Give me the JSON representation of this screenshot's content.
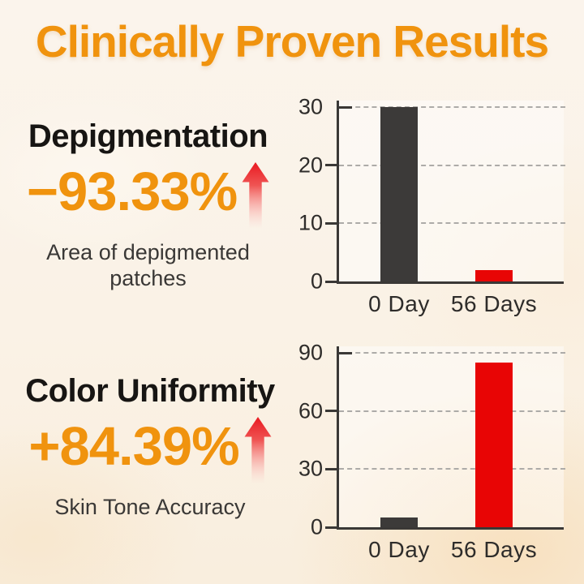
{
  "title": "Clinically Proven Results",
  "colors": {
    "accent_orange": "#F0930E",
    "bar_dark": "#3C3A39",
    "bar_red": "#E80505",
    "arrow_red": "#EA1A21",
    "heading_text": "#171513",
    "caption_text": "#3A3836",
    "axis_text": "#2E2C2A",
    "background_cream": "#FAF2E6"
  },
  "sections": [
    {
      "heading": "Depigmentation",
      "metric": "−93.33%",
      "subtitle_lines": [
        "Area of depigmented",
        "patches"
      ]
    },
    {
      "heading": "Color Uniformity",
      "metric": "+84.39%",
      "subtitle_lines": [
        "Skin Tone Accuracy"
      ]
    }
  ],
  "chart_data": [
    {
      "type": "bar",
      "categories": [
        "0 Day",
        "56 Days"
      ],
      "values": [
        30,
        2
      ],
      "ylim": [
        0,
        30
      ],
      "yticks": [
        0,
        10,
        20,
        30
      ],
      "bar_colors": [
        "#3C3A39",
        "#E80505"
      ],
      "grid": "horizontal-dashed",
      "legend_position": "none",
      "xlabel": "",
      "ylabel": ""
    },
    {
      "type": "bar",
      "categories": [
        "0 Day",
        "56 Days"
      ],
      "values": [
        5,
        85
      ],
      "ylim": [
        0,
        90
      ],
      "yticks": [
        0,
        30,
        60,
        90
      ],
      "bar_colors": [
        "#3C3A39",
        "#E80505"
      ],
      "grid": "horizontal-dashed",
      "legend_position": "none",
      "xlabel": "",
      "ylabel": ""
    }
  ]
}
